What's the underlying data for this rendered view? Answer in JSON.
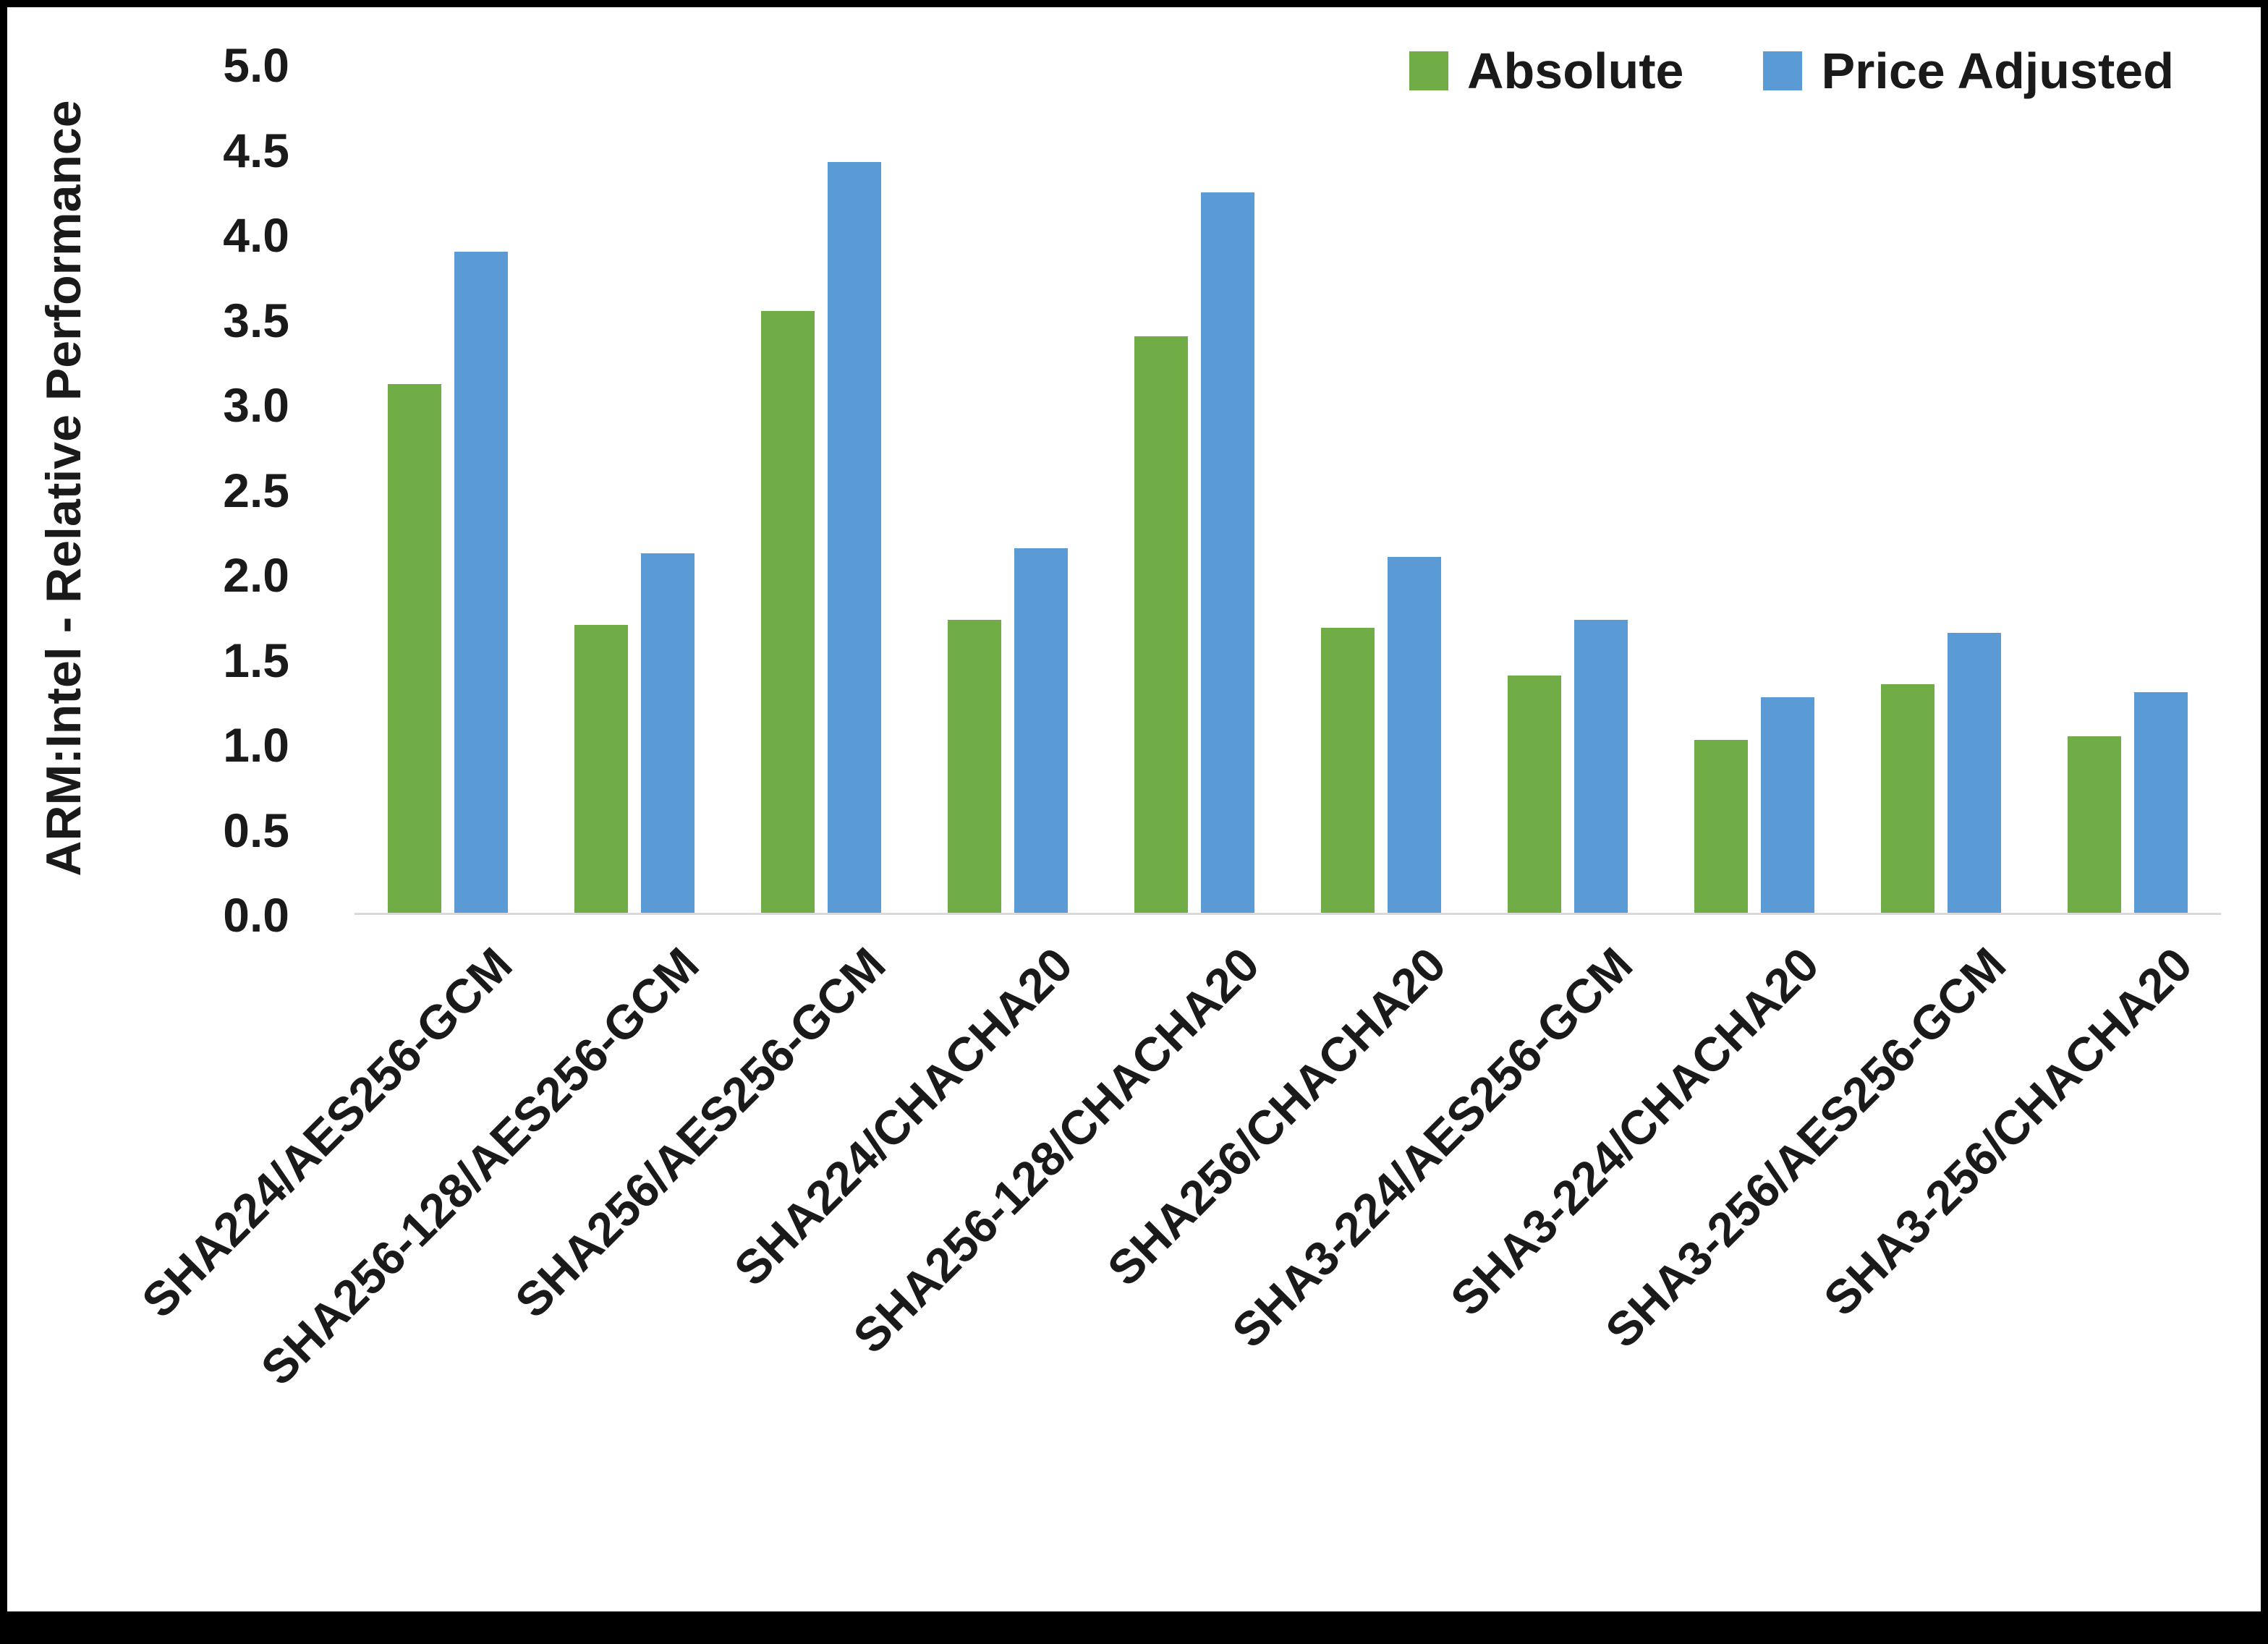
{
  "colors": {
    "absolute": "#70AD47",
    "price_adjusted": "#5B9BD5",
    "axis_text": "#1a1a1a",
    "baseline": "#d9d9d9",
    "frame": "#000000"
  },
  "chart_data": {
    "type": "bar",
    "title": "",
    "xlabel": "",
    "ylabel": "ARM:Intel - Relative Performance",
    "ylim": [
      0,
      5
    ],
    "ytick_step": 0.5,
    "ytick_labels": [
      "0.0",
      "0.5",
      "1.0",
      "1.5",
      "2.0",
      "2.5",
      "3.0",
      "3.5",
      "4.0",
      "4.5",
      "5.0"
    ],
    "grid": false,
    "legend_position": "top-right",
    "categories": [
      "SHA224/AES256-GCM",
      "SHA256-128/AES256-GCM",
      "SHA256/AES256-GCM",
      "SHA224/CHACHA20",
      "SHA256-128/CHACHA20",
      "SHA256/CHACHA20",
      "SHA3-224/AES256-GCM",
      "SHA3-224/CHACHA20",
      "SHA3-256/AES256-GCM",
      "SHA3-256/CHACHA20"
    ],
    "series": [
      {
        "name": "Absolute",
        "color": "#70AD47",
        "values": [
          3.12,
          1.7,
          3.55,
          1.73,
          3.4,
          1.68,
          1.4,
          1.02,
          1.35,
          1.04
        ]
      },
      {
        "name": "Price Adjusted",
        "color": "#5B9BD5",
        "values": [
          3.9,
          2.12,
          4.43,
          2.15,
          4.25,
          2.1,
          1.73,
          1.27,
          1.65,
          1.3
        ]
      }
    ]
  }
}
